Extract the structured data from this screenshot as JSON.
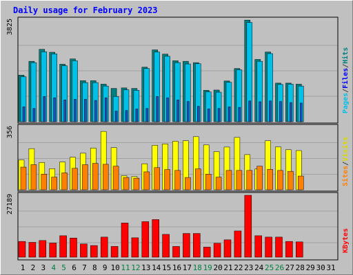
{
  "chart_data": {
    "title": "Daily usage for February 2023",
    "type": "bar",
    "x": [
      "1",
      "2",
      "3",
      "4",
      "5",
      "6",
      "7",
      "8",
      "9",
      "10",
      "11",
      "12",
      "13",
      "14",
      "15",
      "16",
      "17",
      "18",
      "19",
      "20",
      "21",
      "22",
      "23",
      "24",
      "25",
      "26",
      "27",
      "28",
      "29",
      "30",
      "31"
    ],
    "weekend_days": [
      4,
      5,
      11,
      12,
      18,
      19,
      25,
      26
    ],
    "colors": {
      "hits": "#00d8d8",
      "files": "#00c0e8",
      "pages": "#2050c0",
      "visits": "#ffff00",
      "sites": "#ff8000",
      "kbytes": "#ff0000",
      "weekday_label": "#000000",
      "weekend_label": "#008040",
      "title": "#0000ff"
    },
    "panels": [
      {
        "name": "hits-files-pages",
        "ymax_label": "3825",
        "ymax": 3825,
        "legend": [
          {
            "text": "Pages",
            "color": "#00c0e8"
          },
          {
            "text": "/",
            "color": "#404040"
          },
          {
            "text": "Files",
            "color": "#0000ff"
          },
          {
            "text": "/",
            "color": "#404040"
          },
          {
            "text": "Hits",
            "color": "#008080"
          }
        ],
        "series": [
          {
            "name": "Hits",
            "values": [
              1750,
              2270,
              2720,
              2610,
              2160,
              2360,
              1540,
              1540,
              1410,
              1250,
              1270,
              1250,
              2050,
              2700,
              2540,
              2290,
              2270,
              2220,
              1180,
              1190,
              1530,
              2000,
              3820,
              2340,
              2620,
              1450,
              1450,
              1410
            ]
          },
          {
            "name": "Files",
            "values": [
              1690,
              2220,
              2630,
              2550,
              2100,
              2290,
              1470,
              1470,
              1340,
              950,
              1200,
              1180,
              2000,
              2620,
              2460,
              2220,
              2170,
              2180,
              1120,
              1110,
              1480,
              1950,
              3730,
              2270,
              2560,
              1400,
              1410,
              1340
            ]
          },
          {
            "name": "Pages",
            "values": [
              560,
              500,
              950,
              900,
              820,
              840,
              840,
              800,
              900,
              400,
              420,
              480,
              500,
              950,
              900,
              820,
              760,
              580,
              480,
              500,
              560,
              540,
              780,
              750,
              780,
              760,
              720,
              700
            ]
          }
        ]
      },
      {
        "name": "visits-sites",
        "ymax_label": "356",
        "ymax": 356,
        "legend": [
          {
            "text": "Sites",
            "color": "#ff8000"
          },
          {
            "text": "/",
            "color": "#404040"
          },
          {
            "text": "Visits",
            "color": "#d8d800"
          }
        ],
        "series": [
          {
            "name": "Visits",
            "values": [
              170,
              234,
              155,
              120,
              158,
              185,
              208,
              237,
              332,
              240,
              80,
              75,
              148,
              253,
              261,
              276,
              279,
              302,
              255,
              217,
              243,
              298,
              200,
              118,
              279,
              244,
              228,
              223
            ]
          },
          {
            "name": "Sites",
            "values": [
              129,
              143,
              89,
              72,
              96,
              122,
              143,
              150,
              145,
              134,
              70,
              66,
              102,
              126,
              115,
              110,
              70,
              119,
              89,
              72,
              110,
              110,
              110,
              134,
              116,
              110,
              105,
              78
            ]
          }
        ]
      },
      {
        "name": "kbytes",
        "ymax_label": "27189",
        "ymax": 27189,
        "legend": [
          {
            "text": "KBytes",
            "color": "#ff0000"
          }
        ],
        "series": [
          {
            "name": "KBytes",
            "values": [
              6900,
              6500,
              7300,
              6200,
              9400,
              8400,
              5800,
              5100,
              8800,
              4700,
              15000,
              8500,
              15600,
              16500,
              10000,
              4700,
              10400,
              10400,
              4400,
              6100,
              7600,
              11500,
              27189,
              9400,
              8800,
              8800,
              6900,
              6700
            ]
          }
        ]
      }
    ]
  }
}
